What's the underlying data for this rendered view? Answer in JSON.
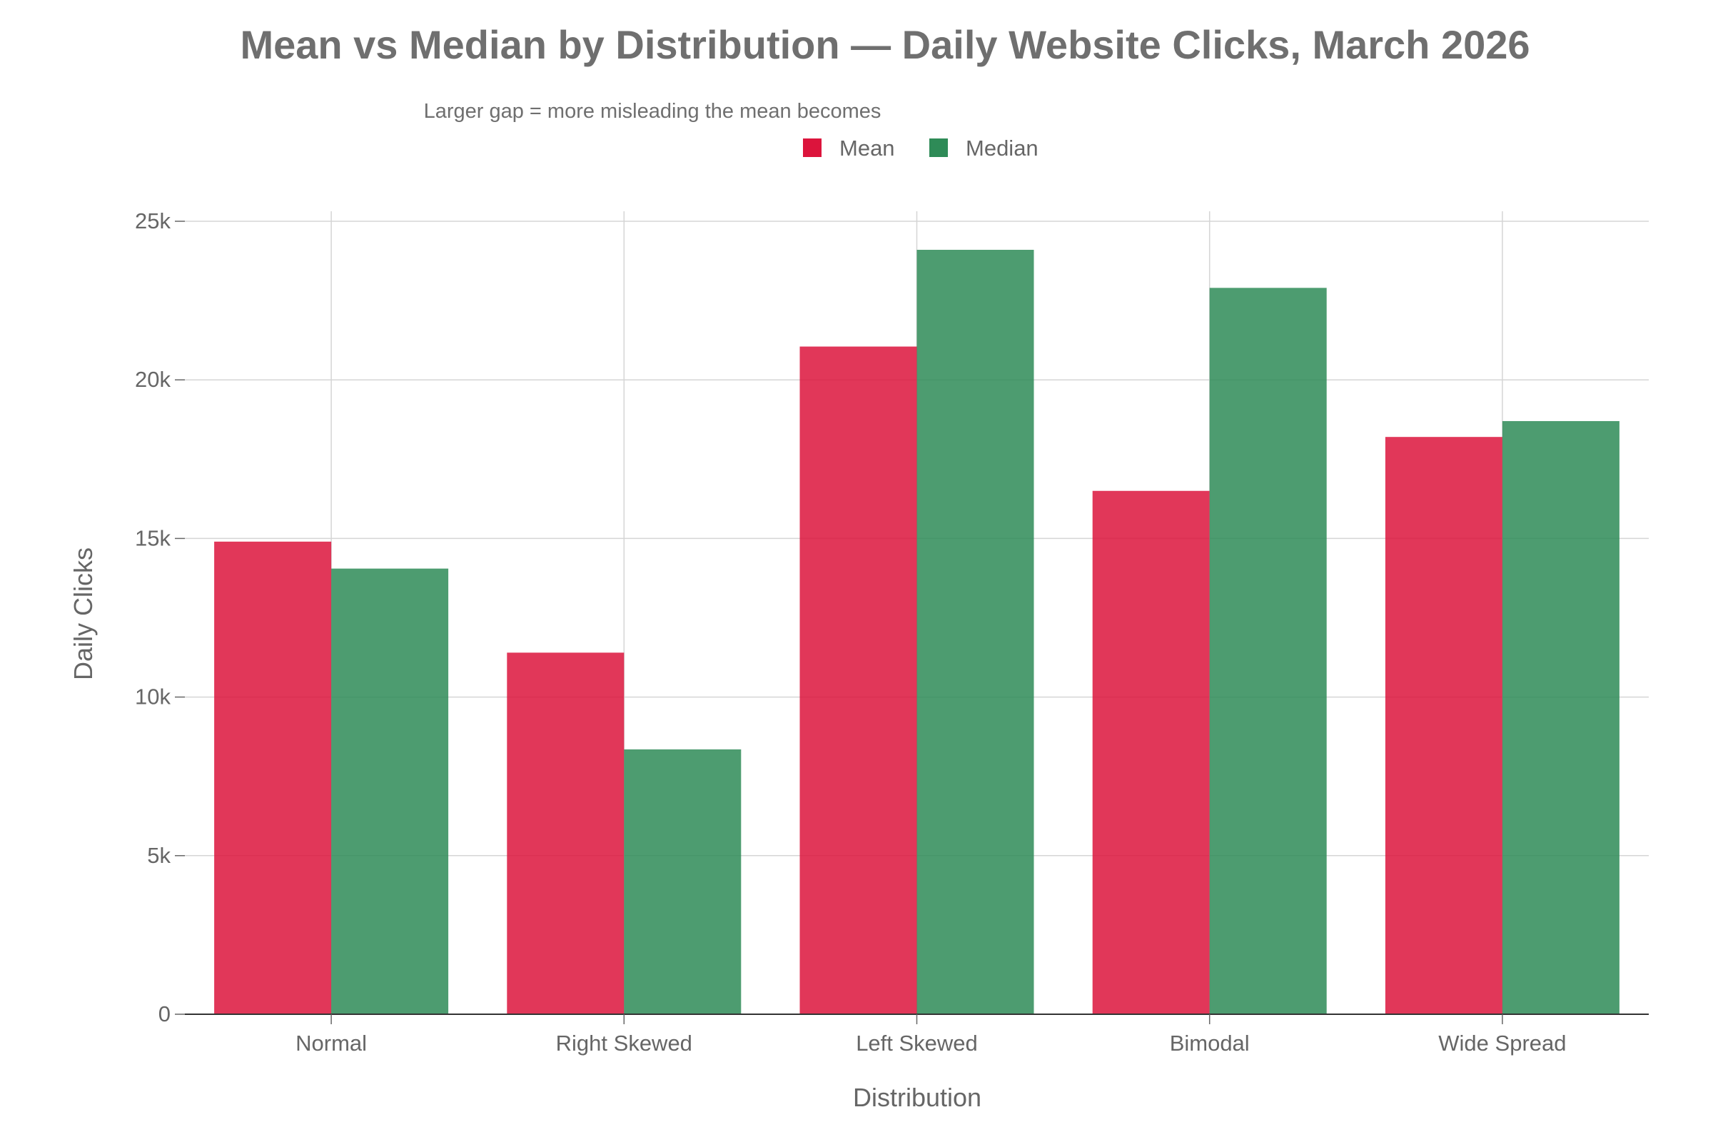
{
  "chart_data": {
    "type": "bar",
    "title": "Mean vs Median by Distribution — Daily Website Clicks, March 2026",
    "subtitle": "Larger gap = more misleading the mean becomes",
    "xlabel": "Distribution",
    "ylabel": "Daily Clicks",
    "categories": [
      "Normal",
      "Right Skewed",
      "Left Skewed",
      "Bimodal",
      "Wide Spread"
    ],
    "series": [
      {
        "name": "Mean",
        "values": [
          14900,
          11400,
          21050,
          16500,
          18200
        ],
        "color": "#dc143c"
      },
      {
        "name": "Median",
        "values": [
          14050,
          8350,
          24100,
          22900,
          18700
        ],
        "color": "#2e8b57"
      }
    ],
    "ylim": [
      0,
      25000
    ],
    "yticks": [
      0,
      5000,
      10000,
      15000,
      20000,
      25000
    ],
    "ytick_labels": [
      "0",
      "5k",
      "10k",
      "15k",
      "20k",
      "25k"
    ],
    "grid": true,
    "legend_position": "top-center"
  }
}
